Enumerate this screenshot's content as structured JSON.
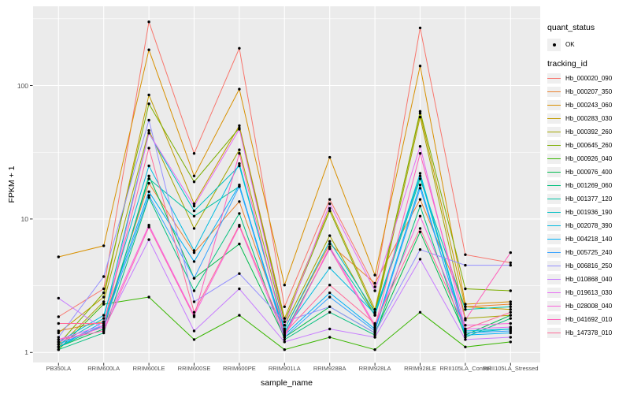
{
  "figure": {
    "panel_background": "#EBEBEB",
    "grid_color": "#FFFFFF",
    "tick_color": "#333333",
    "tick_label_color": "#4D4D4D",
    "point_color": "#000000"
  },
  "legend": {
    "quant_status_title": "quant_status",
    "quant_status_items": [
      {
        "label": "OK",
        "marker": "black-point"
      }
    ],
    "tracking_id_title": "tracking_id"
  },
  "chart_data": {
    "type": "line",
    "title": "",
    "xlabel": "sample_name",
    "ylabel": "FPKM + 1",
    "y_scale": "log10",
    "y_ticks": [
      1,
      10,
      100
    ],
    "y_minor_ticks": [
      3.16,
      31.6,
      316
    ],
    "ylim": [
      0.85,
      400
    ],
    "grid": true,
    "legend_position": "right",
    "marker": "point",
    "categories": [
      "PB350LA",
      "RRIM600LA",
      "RRIM600LE",
      "RRIM600SE",
      "RRIM600PE",
      "RRIM901LA",
      "RRIM928BA",
      "RRIM928LA",
      "RRIM928LE",
      "RRII105LA_Control",
      "RRII105LA_Stressed"
    ],
    "series": [
      {
        "name": "Hb_000020_090",
        "color": "#F8766D",
        "values": [
          1.85,
          3.0,
          300,
          31,
          190,
          2.2,
          14,
          3.1,
          270,
          5.4,
          4.7
        ]
      },
      {
        "name": "Hb_000207_350",
        "color": "#EA8331",
        "values": [
          1.45,
          1.7,
          18.5,
          5.6,
          13.5,
          1.5,
          6.5,
          3.3,
          14,
          2.2,
          2.3
        ]
      },
      {
        "name": "Hb_000243_060",
        "color": "#D89000",
        "values": [
          5.2,
          6.3,
          185,
          21,
          94,
          3.2,
          29,
          3.8,
          140,
          2.3,
          2.4
        ]
      },
      {
        "name": "Hb_000283_030",
        "color": "#C09B00",
        "values": [
          1.4,
          2.6,
          85,
          13,
          50,
          1.8,
          12,
          2.1,
          62,
          2.2,
          2.1
        ]
      },
      {
        "name": "Hb_000392_260",
        "color": "#A3A500",
        "values": [
          1.1,
          2.4,
          46,
          8.5,
          33,
          1.6,
          7.5,
          1.9,
          58,
          1.8,
          1.9
        ]
      },
      {
        "name": "Hb_000645_260",
        "color": "#7CAE00",
        "values": [
          1.15,
          2.8,
          73,
          19,
          48,
          1.7,
          11.5,
          2.0,
          64,
          3.0,
          2.9
        ]
      },
      {
        "name": "Hb_000926_040",
        "color": "#39B600",
        "values": [
          1.05,
          2.3,
          2.6,
          1.25,
          1.9,
          1.05,
          1.3,
          1.05,
          2.0,
          1.1,
          1.2
        ]
      },
      {
        "name": "Hb_000976_400",
        "color": "#00BB4E",
        "values": [
          1.1,
          1.5,
          21,
          3.6,
          6.5,
          1.3,
          2.2,
          1.4,
          8.0,
          1.35,
          1.9
        ]
      },
      {
        "name": "Hb_001269_060",
        "color": "#00BF7D",
        "values": [
          1.05,
          1.4,
          14.5,
          2.9,
          11,
          1.25,
          2.0,
          1.35,
          12.5,
          1.3,
          1.8
        ]
      },
      {
        "name": "Hb_001377_120",
        "color": "#00C1A3",
        "values": [
          1.1,
          1.6,
          20,
          10.5,
          17.5,
          1.4,
          6.0,
          1.9,
          20,
          2.1,
          2.2
        ]
      },
      {
        "name": "Hb_001936_190",
        "color": "#00BFC4",
        "values": [
          1.15,
          1.8,
          44,
          11.5,
          25,
          1.5,
          6.8,
          2.0,
          21,
          1.4,
          1.5
        ]
      },
      {
        "name": "Hb_002078_390",
        "color": "#00BAE0",
        "values": [
          1.2,
          1.9,
          25,
          5.8,
          26,
          1.45,
          4.3,
          1.95,
          22,
          1.45,
          1.5
        ]
      },
      {
        "name": "Hb_004218_140",
        "color": "#00B0F6",
        "values": [
          1.1,
          1.7,
          16,
          4.8,
          18,
          1.35,
          2.8,
          1.5,
          18,
          1.35,
          1.4
        ]
      },
      {
        "name": "Hb_005725_240",
        "color": "#35A2FF",
        "values": [
          1.15,
          1.6,
          15,
          3.6,
          17.5,
          1.3,
          2.6,
          1.45,
          17,
          1.4,
          1.45
        ]
      },
      {
        "name": "Hb_006816_250",
        "color": "#9590FF",
        "values": [
          1.3,
          3.7,
          55,
          2.4,
          3.9,
          1.7,
          2.2,
          1.4,
          5.9,
          4.5,
          4.5
        ]
      },
      {
        "name": "Hb_010868_040",
        "color": "#C77CFF",
        "values": [
          2.55,
          1.5,
          7.0,
          1.45,
          3.0,
          1.2,
          1.5,
          1.3,
          5.0,
          1.25,
          1.3
        ]
      },
      {
        "name": "Hb_019613_030",
        "color": "#E76BF3",
        "values": [
          1.25,
          1.6,
          44,
          12.5,
          47,
          1.6,
          13,
          2.9,
          35,
          1.5,
          1.55
        ]
      },
      {
        "name": "Hb_028008_040",
        "color": "#FA62DB",
        "values": [
          1.2,
          1.55,
          9.0,
          1.9,
          8.8,
          1.3,
          6.2,
          1.6,
          10.5,
          1.6,
          1.65
        ]
      },
      {
        "name": "Hb_041692_010",
        "color": "#FF62BC",
        "values": [
          1.25,
          1.45,
          8.7,
          1.85,
          31,
          1.35,
          6.0,
          1.55,
          31,
          1.75,
          5.6
        ]
      },
      {
        "name": "Hb_147378_010",
        "color": "#FF6A98",
        "values": [
          1.65,
          1.65,
          34,
          2.0,
          9.0,
          1.4,
          3.2,
          1.65,
          8.5,
          1.5,
          2.0
        ]
      }
    ]
  }
}
